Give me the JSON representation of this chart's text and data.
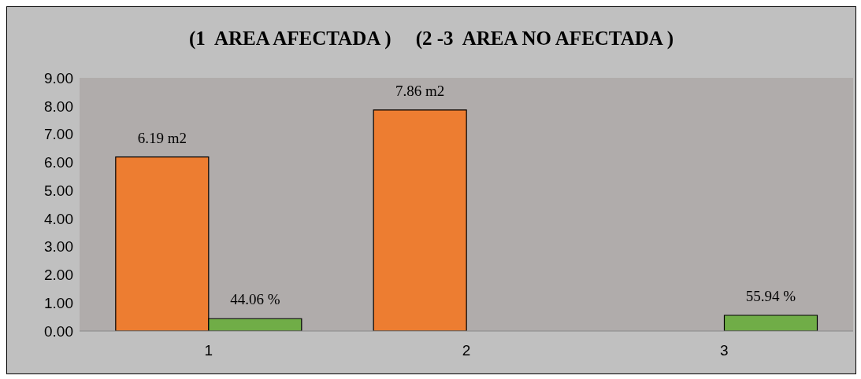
{
  "chart_data": {
    "type": "bar",
    "title": "(1  AREA AFECTADA )     (2 -3  AREA NO AFECTADA )",
    "categories": [
      "1",
      "2",
      "3"
    ],
    "series": [
      {
        "color": "#ed7d31",
        "values": [
          6.19,
          7.86,
          null
        ],
        "value_labels": [
          "6.19 m2",
          "7.86 m2",
          null
        ]
      },
      {
        "color": "#70ad47",
        "values": [
          0.4406,
          null,
          0.5594
        ],
        "value_labels": [
          "44.06 %",
          null,
          "55.94 %"
        ]
      }
    ],
    "ylim": [
      0,
      9
    ],
    "yticks": [
      {
        "value": 0,
        "label": "0.00"
      },
      {
        "value": 1,
        "label": "1.00"
      },
      {
        "value": 2,
        "label": "2.00"
      },
      {
        "value": 3,
        "label": "3.00"
      },
      {
        "value": 4,
        "label": "4.00"
      },
      {
        "value": 5,
        "label": "5.00"
      },
      {
        "value": 6,
        "label": "6.00"
      },
      {
        "value": 7,
        "label": "7.00"
      },
      {
        "value": 8,
        "label": "8.00"
      },
      {
        "value": 9,
        "label": "9.00"
      }
    ],
    "grid": false,
    "legend": false
  }
}
